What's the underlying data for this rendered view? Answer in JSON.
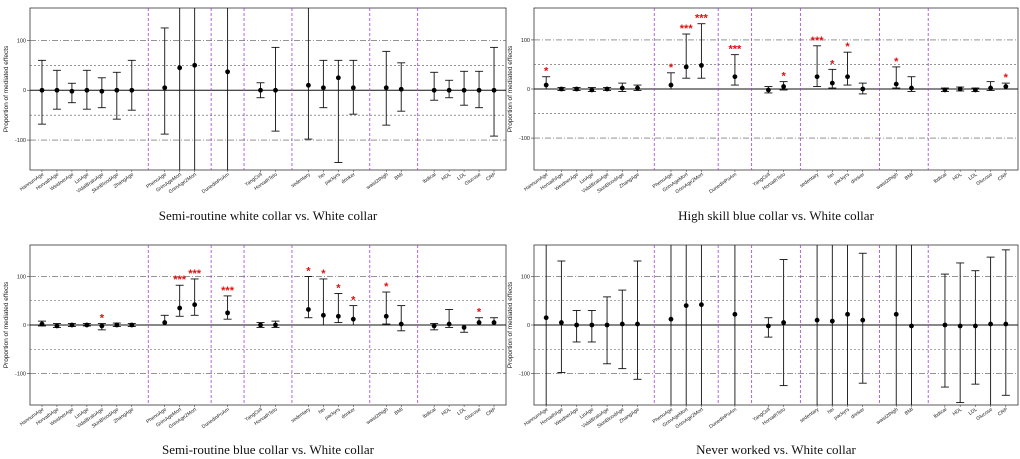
{
  "chart_data": [
    {
      "type": "scatter",
      "title": "Semi-routine white collar vs. White collar",
      "ylabel": "Proportion of mediated effects",
      "ylim": [
        -160,
        165
      ],
      "yticks": [
        -100,
        0,
        100
      ],
      "categories": [
        "HannumAge",
        "HorvathAge",
        "WeidnerAge",
        "LinAge",
        "VidalBraloAge",
        "SkinBloodAge",
        "ZhangAge",
        "PhenoAge",
        "GrimAgeMort",
        "GrimAge2Mort",
        "DunedinPoAm",
        "YangCell",
        "HorvathTelo",
        "sedentary",
        "hei",
        "packyrs",
        "drinker",
        "waist2thigh",
        "BMI",
        "lbdtcal",
        "HDL",
        "LDL",
        "Glucose",
        "CRP"
      ],
      "groups": [
        7,
        3,
        1,
        2,
        4,
        2,
        5
      ],
      "points": [
        {
          "est": 0,
          "lo": -68,
          "hi": 60,
          "sig": ""
        },
        {
          "est": 0,
          "lo": -38,
          "hi": 40,
          "sig": ""
        },
        {
          "est": -2,
          "lo": -25,
          "hi": 14,
          "sig": ""
        },
        {
          "est": 0,
          "lo": -38,
          "hi": 40,
          "sig": ""
        },
        {
          "est": -2,
          "lo": -35,
          "hi": 25,
          "sig": ""
        },
        {
          "est": 0,
          "lo": -58,
          "hi": 36,
          "sig": ""
        },
        {
          "est": 0,
          "lo": -40,
          "hi": 60,
          "sig": ""
        },
        {
          "est": 5,
          "lo": -88,
          "hi": 125,
          "sig": ""
        },
        {
          "est": 45,
          "lo": -165,
          "hi": 165,
          "sig": ""
        },
        {
          "est": 50,
          "lo": -165,
          "hi": 165,
          "sig": ""
        },
        {
          "est": 37,
          "lo": -165,
          "hi": 165,
          "sig": ""
        },
        {
          "est": 0,
          "lo": -15,
          "hi": 15,
          "sig": ""
        },
        {
          "est": 0,
          "lo": -82,
          "hi": 86,
          "sig": ""
        },
        {
          "est": 10,
          "lo": -98,
          "hi": 165,
          "sig": ""
        },
        {
          "est": 5,
          "lo": -35,
          "hi": 60,
          "sig": ""
        },
        {
          "est": 25,
          "lo": -145,
          "hi": 60,
          "sig": ""
        },
        {
          "est": 5,
          "lo": -48,
          "hi": 60,
          "sig": ""
        },
        {
          "est": 5,
          "lo": -70,
          "hi": 78,
          "sig": ""
        },
        {
          "est": 2,
          "lo": -42,
          "hi": 55,
          "sig": ""
        },
        {
          "est": 0,
          "lo": -20,
          "hi": 36,
          "sig": ""
        },
        {
          "est": 0,
          "lo": -15,
          "hi": 20,
          "sig": ""
        },
        {
          "est": 0,
          "lo": -30,
          "hi": 38,
          "sig": ""
        },
        {
          "est": 0,
          "lo": -35,
          "hi": 38,
          "sig": ""
        },
        {
          "est": 0,
          "lo": -92,
          "hi": 86,
          "sig": ""
        }
      ]
    },
    {
      "type": "scatter",
      "title": "High skill blue collar vs. White collar",
      "ylabel": "Proportion of mediated effects",
      "ylim": [
        -165,
        165
      ],
      "yticks": [
        -100,
        0,
        100
      ],
      "categories": [
        "HannumAge",
        "HorvathAge",
        "WeidnerAge",
        "LinAge",
        "VidalBraloAge",
        "SkinBloodAge",
        "ZhangAge",
        "PhenoAge",
        "GrimAgeMort",
        "GrimAge2Mort",
        "DunedinPoAm",
        "YangCell",
        "HorvathTelo",
        "sedentary",
        "hei",
        "packyrs",
        "drinker",
        "waist2thigh",
        "BMI",
        "lbdtcal",
        "HDL",
        "LDL",
        "Glucose",
        "CRP"
      ],
      "groups": [
        7,
        3,
        1,
        2,
        4,
        2,
        5
      ],
      "points": [
        {
          "est": 8,
          "lo": 0,
          "hi": 25,
          "sig": "*"
        },
        {
          "est": 0,
          "lo": -3,
          "hi": 3,
          "sig": ""
        },
        {
          "est": 0,
          "lo": -3,
          "hi": 3,
          "sig": ""
        },
        {
          "est": -2,
          "lo": -5,
          "hi": 3,
          "sig": ""
        },
        {
          "est": 0,
          "lo": -3,
          "hi": 3,
          "sig": ""
        },
        {
          "est": 2,
          "lo": -5,
          "hi": 12,
          "sig": ""
        },
        {
          "est": 2,
          "lo": -3,
          "hi": 8,
          "sig": ""
        },
        {
          "est": 8,
          "lo": 0,
          "hi": 33,
          "sig": "*"
        },
        {
          "est": 45,
          "lo": 22,
          "hi": 112,
          "sig": "***"
        },
        {
          "est": 48,
          "lo": 22,
          "hi": 133,
          "sig": "***"
        },
        {
          "est": 25,
          "lo": 8,
          "hi": 70,
          "sig": "***"
        },
        {
          "est": -2,
          "lo": -8,
          "hi": 5,
          "sig": ""
        },
        {
          "est": 5,
          "lo": -2,
          "hi": 15,
          "sig": "*"
        },
        {
          "est": 25,
          "lo": 5,
          "hi": 88,
          "sig": "***"
        },
        {
          "est": 12,
          "lo": 2,
          "hi": 40,
          "sig": "*"
        },
        {
          "est": 25,
          "lo": 8,
          "hi": 75,
          "sig": "*"
        },
        {
          "est": 0,
          "lo": -10,
          "hi": 12,
          "sig": ""
        },
        {
          "est": 10,
          "lo": 2,
          "hi": 45,
          "sig": "*"
        },
        {
          "est": 2,
          "lo": -5,
          "hi": 25,
          "sig": ""
        },
        {
          "est": -2,
          "lo": -5,
          "hi": 2,
          "sig": ""
        },
        {
          "est": 0,
          "lo": -4,
          "hi": 4,
          "sig": ""
        },
        {
          "est": -2,
          "lo": -5,
          "hi": 2,
          "sig": ""
        },
        {
          "est": 2,
          "lo": -3,
          "hi": 15,
          "sig": ""
        },
        {
          "est": 5,
          "lo": 0,
          "hi": 12,
          "sig": "*"
        }
      ]
    },
    {
      "type": "scatter",
      "title": "Semi-routine blue collar vs. White collar",
      "ylabel": "Proportion of mediated effects",
      "ylim": [
        -165,
        165
      ],
      "yticks": [
        -100,
        0,
        100
      ],
      "categories": [
        "HannumAge",
        "HorvathAge",
        "WeidnerAge",
        "LinAge",
        "VidalBraloAge",
        "SkinBloodAge",
        "ZhangAge",
        "PhenoAge",
        "GrimAgeMort",
        "GrimAge2Mort",
        "DunedinPoAm",
        "YangCell",
        "HorvathTelo",
        "sedentary",
        "hei",
        "packyrs",
        "drinker",
        "waist2thigh",
        "BMI",
        "lbdtcal",
        "HDL",
        "LDL",
        "Glucose",
        "CRP"
      ],
      "groups": [
        7,
        3,
        1,
        2,
        4,
        2,
        5
      ],
      "points": [
        {
          "est": 2,
          "lo": -2,
          "hi": 8,
          "sig": ""
        },
        {
          "est": -2,
          "lo": -5,
          "hi": 3,
          "sig": ""
        },
        {
          "est": 0,
          "lo": -3,
          "hi": 3,
          "sig": ""
        },
        {
          "est": 0,
          "lo": -2,
          "hi": 3,
          "sig": ""
        },
        {
          "est": -2,
          "lo": -10,
          "hi": 3,
          "sig": "*"
        },
        {
          "est": 0,
          "lo": -3,
          "hi": 4,
          "sig": ""
        },
        {
          "est": 0,
          "lo": -3,
          "hi": 3,
          "sig": ""
        },
        {
          "est": 5,
          "lo": 0,
          "hi": 20,
          "sig": ""
        },
        {
          "est": 35,
          "lo": 18,
          "hi": 82,
          "sig": "***"
        },
        {
          "est": 42,
          "lo": 20,
          "hi": 95,
          "sig": "***"
        },
        {
          "est": 25,
          "lo": 12,
          "hi": 60,
          "sig": "***"
        },
        {
          "est": 0,
          "lo": -5,
          "hi": 5,
          "sig": ""
        },
        {
          "est": 0,
          "lo": -5,
          "hi": 8,
          "sig": ""
        },
        {
          "est": 32,
          "lo": 15,
          "hi": 100,
          "sig": "*"
        },
        {
          "est": 20,
          "lo": 0,
          "hi": 95,
          "sig": "*"
        },
        {
          "est": 18,
          "lo": 5,
          "hi": 65,
          "sig": "*"
        },
        {
          "est": 12,
          "lo": 0,
          "hi": 40,
          "sig": "*"
        },
        {
          "est": 18,
          "lo": 2,
          "hi": 68,
          "sig": "*"
        },
        {
          "est": 2,
          "lo": -12,
          "hi": 40,
          "sig": ""
        },
        {
          "est": -2,
          "lo": -10,
          "hi": 3,
          "sig": ""
        },
        {
          "est": 2,
          "lo": -5,
          "hi": 32,
          "sig": ""
        },
        {
          "est": -5,
          "lo": -15,
          "hi": 0,
          "sig": ""
        },
        {
          "est": 5,
          "lo": 0,
          "hi": 15,
          "sig": "*"
        },
        {
          "est": 5,
          "lo": 0,
          "hi": 15,
          "sig": ""
        }
      ]
    },
    {
      "type": "scatter",
      "title": "Never worked vs. White collar",
      "ylabel": "Proportion of mediated effects",
      "ylim": [
        -165,
        165
      ],
      "yticks": [
        -100,
        0,
        100
      ],
      "categories": [
        "HannumAge",
        "HorvathAge",
        "WeidnerAge",
        "LinAge",
        "VidalBraloAge",
        "SkinBloodAge",
        "ZhangAge",
        "PhenoAge",
        "GrimAgeMort",
        "GrimAge2Mort",
        "DunedinPoAm",
        "YangCell",
        "HorvathTelo",
        "sedentary",
        "hei",
        "packyrs",
        "drinker",
        "waist2thigh",
        "BMI",
        "lbdtcal",
        "HDL",
        "LDL",
        "Glucose",
        "CRP"
      ],
      "groups": [
        7,
        3,
        1,
        2,
        4,
        2,
        5
      ],
      "points": [
        {
          "est": 15,
          "lo": -165,
          "hi": 165,
          "sig": ""
        },
        {
          "est": 5,
          "lo": -98,
          "hi": 132,
          "sig": ""
        },
        {
          "est": 0,
          "lo": -35,
          "hi": 30,
          "sig": ""
        },
        {
          "est": 0,
          "lo": -35,
          "hi": 30,
          "sig": ""
        },
        {
          "est": 0,
          "lo": -80,
          "hi": 58,
          "sig": ""
        },
        {
          "est": 2,
          "lo": -90,
          "hi": 72,
          "sig": ""
        },
        {
          "est": 2,
          "lo": -112,
          "hi": 132,
          "sig": ""
        },
        {
          "est": 12,
          "lo": -165,
          "hi": 165,
          "sig": ""
        },
        {
          "est": 40,
          "lo": -165,
          "hi": 165,
          "sig": ""
        },
        {
          "est": 42,
          "lo": -165,
          "hi": 165,
          "sig": ""
        },
        {
          "est": 22,
          "lo": -165,
          "hi": 165,
          "sig": ""
        },
        {
          "est": -2,
          "lo": -25,
          "hi": 15,
          "sig": ""
        },
        {
          "est": 5,
          "lo": -125,
          "hi": 135,
          "sig": ""
        },
        {
          "est": 10,
          "lo": -165,
          "hi": 165,
          "sig": ""
        },
        {
          "est": 8,
          "lo": -165,
          "hi": 165,
          "sig": ""
        },
        {
          "est": 22,
          "lo": -165,
          "hi": 165,
          "sig": ""
        },
        {
          "est": 10,
          "lo": -120,
          "hi": 148,
          "sig": ""
        },
        {
          "est": 22,
          "lo": -165,
          "hi": 165,
          "sig": ""
        },
        {
          "est": -2,
          "lo": -165,
          "hi": 165,
          "sig": ""
        },
        {
          "est": 0,
          "lo": -128,
          "hi": 105,
          "sig": ""
        },
        {
          "est": -2,
          "lo": -160,
          "hi": 128,
          "sig": ""
        },
        {
          "est": -2,
          "lo": -122,
          "hi": 112,
          "sig": ""
        },
        {
          "est": 2,
          "lo": -165,
          "hi": 140,
          "sig": ""
        },
        {
          "est": 2,
          "lo": -145,
          "hi": 155,
          "sig": ""
        }
      ]
    }
  ]
}
